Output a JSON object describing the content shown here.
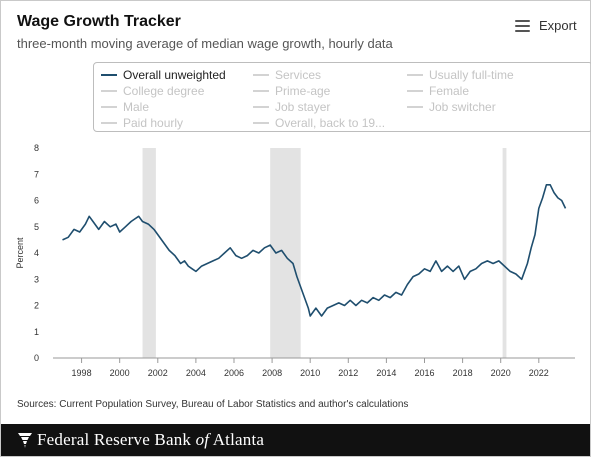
{
  "header": {
    "title": "Wage Growth Tracker",
    "subtitle": "three-month moving average of median wage growth, hourly data",
    "export_label": "Export",
    "export_icon": "hamburger-menu-icon"
  },
  "legend": {
    "items": [
      {
        "label": "Overall unweighted",
        "active": true
      },
      {
        "label": "Services",
        "active": false
      },
      {
        "label": "Usually full-time",
        "active": false
      },
      {
        "label": "College degree",
        "active": false
      },
      {
        "label": "Prime-age",
        "active": false
      },
      {
        "label": "Female",
        "active": false
      },
      {
        "label": "Male",
        "active": false
      },
      {
        "label": "Job stayer",
        "active": false
      },
      {
        "label": "Job switcher",
        "active": false
      },
      {
        "label": "Paid hourly",
        "active": false
      },
      {
        "label": "Overall, back to 19...",
        "active": false
      }
    ]
  },
  "chart_data": {
    "type": "line",
    "ylabel": "Percent",
    "xlabel": "",
    "ylim": [
      0,
      8
    ],
    "yticks": [
      "0",
      "1",
      "2",
      "3",
      "4",
      "5",
      "6",
      "7",
      "8"
    ],
    "xlim": [
      1996.5,
      2023.9
    ],
    "xticks": [
      "1998",
      "2000",
      "2002",
      "2004",
      "2006",
      "2008",
      "2010",
      "2012",
      "2014",
      "2016",
      "2018",
      "2020",
      "2022"
    ],
    "grid": false,
    "line_color": "#1f4e6e",
    "recession_color": "#e3e3e3",
    "recessions": [
      [
        2001.2,
        2001.9
      ],
      [
        2007.9,
        2009.5
      ],
      [
        2020.1,
        2020.3
      ]
    ],
    "series": [
      {
        "name": "Overall unweighted",
        "x": [
          1997.0,
          1997.3,
          1997.6,
          1997.9,
          1998.2,
          1998.4,
          1998.6,
          1998.9,
          1999.2,
          1999.5,
          1999.8,
          2000.0,
          2000.3,
          2000.6,
          2000.8,
          2001.0,
          2001.2,
          2001.5,
          2001.8,
          2002.0,
          2002.3,
          2002.6,
          2002.9,
          2003.2,
          2003.4,
          2003.6,
          2003.8,
          2004.0,
          2004.3,
          2004.6,
          2004.9,
          2005.2,
          2005.5,
          2005.8,
          2006.1,
          2006.4,
          2006.7,
          2007.0,
          2007.3,
          2007.6,
          2007.9,
          2008.2,
          2008.5,
          2008.8,
          2009.1,
          2009.3,
          2009.5,
          2009.7,
          2009.9,
          2010.0,
          2010.3,
          2010.6,
          2010.9,
          2011.2,
          2011.5,
          2011.8,
          2012.1,
          2012.4,
          2012.7,
          2013.0,
          2013.3,
          2013.6,
          2013.9,
          2014.2,
          2014.5,
          2014.8,
          2015.1,
          2015.4,
          2015.7,
          2016.0,
          2016.3,
          2016.6,
          2016.9,
          2017.2,
          2017.5,
          2017.8,
          2018.1,
          2018.4,
          2018.7,
          2019.0,
          2019.3,
          2019.6,
          2019.9,
          2020.2,
          2020.5,
          2020.8,
          2021.1,
          2021.4,
          2021.6,
          2021.8,
          2022.0,
          2022.2,
          2022.4,
          2022.6,
          2022.8,
          2023.0,
          2023.2,
          2023.4
        ],
        "values": [
          4.5,
          4.6,
          4.9,
          4.8,
          5.1,
          5.4,
          5.2,
          4.9,
          5.2,
          5.0,
          5.1,
          4.8,
          5.0,
          5.2,
          5.3,
          5.4,
          5.2,
          5.1,
          4.9,
          4.7,
          4.4,
          4.1,
          3.9,
          3.6,
          3.7,
          3.5,
          3.4,
          3.3,
          3.5,
          3.6,
          3.7,
          3.8,
          4.0,
          4.2,
          3.9,
          3.8,
          3.9,
          4.1,
          4.0,
          4.2,
          4.3,
          4.0,
          4.1,
          3.8,
          3.6,
          3.1,
          2.7,
          2.3,
          1.9,
          1.6,
          1.9,
          1.6,
          1.9,
          2.0,
          2.1,
          2.0,
          2.2,
          2.0,
          2.2,
          2.1,
          2.3,
          2.2,
          2.4,
          2.3,
          2.5,
          2.4,
          2.8,
          3.1,
          3.2,
          3.4,
          3.3,
          3.7,
          3.3,
          3.5,
          3.3,
          3.5,
          3.0,
          3.3,
          3.4,
          3.6,
          3.7,
          3.6,
          3.7,
          3.5,
          3.3,
          3.2,
          3.0,
          3.6,
          4.2,
          4.7,
          5.7,
          6.1,
          6.6,
          6.6,
          6.3,
          6.1,
          6.0,
          5.7
        ]
      }
    ]
  },
  "sources": "Sources: Current Population Survey, Bureau of Labor Statistics and author's calculations",
  "footer": {
    "bank_name_part1": "Federal Reserve Bank ",
    "bank_name_of": "of",
    "bank_name_part2": " Atlanta",
    "logo_icon": "eagle-logo-icon"
  }
}
